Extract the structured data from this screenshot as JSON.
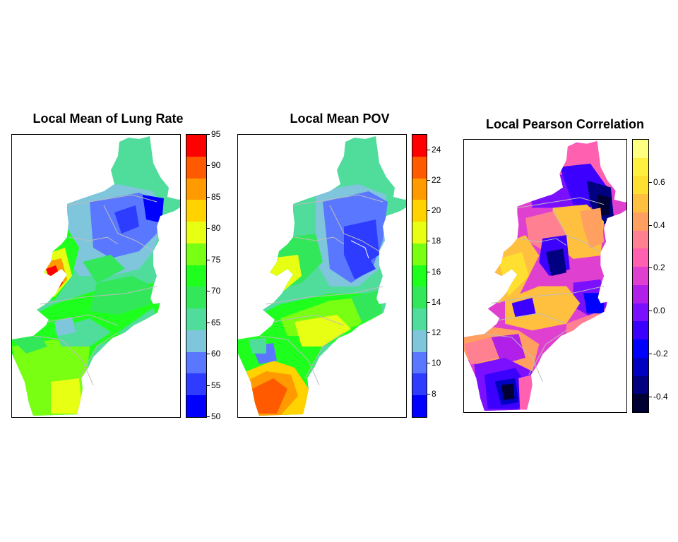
{
  "panels": [
    {
      "id": "lung",
      "title": "Local Mean of Lung Rate",
      "legend": {
        "min": 50,
        "max": 95,
        "colors": [
          "#0000ff",
          "#2e3cff",
          "#5a78ff",
          "#7fc6dc",
          "#50dc9a",
          "#32e85a",
          "#1eff1e",
          "#78ff12",
          "#e6ff12",
          "#ffd200",
          "#ff9a00",
          "#ff5a00",
          "#ff0000"
        ],
        "ticks": [
          "50",
          "55",
          "60",
          "65",
          "70",
          "75",
          "80",
          "85",
          "90",
          "95"
        ]
      }
    },
    {
      "id": "pov",
      "title": "Local Mean POV",
      "legend": {
        "min": 6.5,
        "max": 25,
        "colors": [
          "#0000ff",
          "#2e3cff",
          "#5a78ff",
          "#7fc6dc",
          "#50dc9a",
          "#32e85a",
          "#1eff1e",
          "#78ff12",
          "#e6ff12",
          "#ffd200",
          "#ff9a00",
          "#ff5a00",
          "#ff0000"
        ],
        "ticks": [
          "8",
          "10",
          "12",
          "14",
          "16",
          "18",
          "20",
          "22",
          "24"
        ]
      }
    },
    {
      "id": "corr",
      "title": "Local Pearson Correlation",
      "legend": {
        "min": -0.47,
        "max": 0.8,
        "colors": [
          "#000033",
          "#000080",
          "#0000c0",
          "#0000ff",
          "#3c00ff",
          "#7a10ff",
          "#b020e8",
          "#e040d0",
          "#ff60b0",
          "#ff8090",
          "#ffa060",
          "#ffc040",
          "#ffe030",
          "#fff040",
          "#ffff80"
        ],
        "ticks": [
          "-0.4",
          "-0.2",
          "0.0",
          "0.2",
          "0.4",
          "0.6"
        ]
      }
    }
  ]
}
